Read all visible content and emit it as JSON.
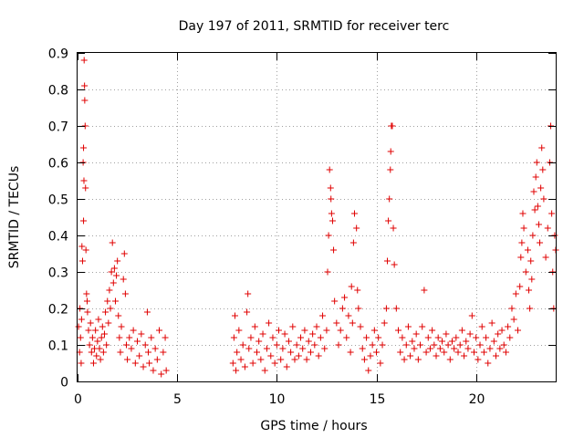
{
  "chart_data": {
    "type": "scatter",
    "title": "Day 197 of 2011, SRMTID for receiver terc",
    "xlabel": "GPS time / hours",
    "ylabel": "SRMTID / TECUs",
    "xlim": [
      0,
      24
    ],
    "ylim": [
      0,
      0.9
    ],
    "xticks": [
      0,
      5,
      10,
      15,
      20
    ],
    "xtick_labels": [
      "0",
      "5",
      "10",
      "15",
      "20"
    ],
    "yticks": [
      0,
      0.1,
      0.2,
      0.3,
      0.4,
      0.5,
      0.6,
      0.7,
      0.8,
      0.9
    ],
    "ytick_labels": [
      "0",
      "0.1",
      "0.2",
      "0.3",
      "0.4",
      "0.5",
      "0.6",
      "0.7",
      "0.8",
      "0.9"
    ],
    "grid": true,
    "marker": "+",
    "color": "#e00000",
    "series": [
      {
        "name": "SRMTID",
        "points": [
          [
            0.05,
            0.15
          ],
          [
            0.1,
            0.08
          ],
          [
            0.12,
            0.2
          ],
          [
            0.15,
            0.12
          ],
          [
            0.18,
            0.05
          ],
          [
            0.2,
            0.17
          ],
          [
            0.22,
            0.37
          ],
          [
            0.25,
            0.33
          ],
          [
            0.28,
            0.6
          ],
          [
            0.3,
            0.64
          ],
          [
            0.3,
            0.44
          ],
          [
            0.32,
            0.55
          ],
          [
            0.33,
            0.88
          ],
          [
            0.35,
            0.81
          ],
          [
            0.36,
            0.77
          ],
          [
            0.38,
            0.7
          ],
          [
            0.4,
            0.53
          ],
          [
            0.42,
            0.36
          ],
          [
            0.45,
            0.24
          ],
          [
            0.48,
            0.22
          ],
          [
            0.5,
            0.19
          ],
          [
            0.55,
            0.14
          ],
          [
            0.6,
            0.1
          ],
          [
            0.65,
            0.16
          ],
          [
            0.7,
            0.08
          ],
          [
            0.75,
            0.12
          ],
          [
            0.8,
            0.05
          ],
          [
            0.85,
            0.09
          ],
          [
            0.9,
            0.14
          ],
          [
            0.95,
            0.07
          ],
          [
            1.0,
            0.11
          ],
          [
            1.05,
            0.17
          ],
          [
            1.1,
            0.09
          ],
          [
            1.15,
            0.06
          ],
          [
            1.2,
            0.12
          ],
          [
            1.25,
            0.15
          ],
          [
            1.3,
            0.08
          ],
          [
            1.35,
            0.13
          ],
          [
            1.4,
            0.19
          ],
          [
            1.45,
            0.1
          ],
          [
            1.5,
            0.22
          ],
          [
            1.55,
            0.16
          ],
          [
            1.6,
            0.25
          ],
          [
            1.65,
            0.2
          ],
          [
            1.7,
            0.3
          ],
          [
            1.75,
            0.38
          ],
          [
            1.8,
            0.27
          ],
          [
            1.85,
            0.31
          ],
          [
            1.9,
            0.22
          ],
          [
            1.95,
            0.29
          ],
          [
            2.0,
            0.33
          ],
          [
            2.05,
            0.18
          ],
          [
            2.1,
            0.12
          ],
          [
            2.15,
            0.08
          ],
          [
            2.2,
            0.15
          ],
          [
            2.3,
            0.28
          ],
          [
            2.35,
            0.35
          ],
          [
            2.4,
            0.24
          ],
          [
            2.45,
            0.1
          ],
          [
            2.5,
            0.06
          ],
          [
            2.6,
            0.12
          ],
          [
            2.7,
            0.09
          ],
          [
            2.8,
            0.14
          ],
          [
            2.9,
            0.05
          ],
          [
            3.0,
            0.11
          ],
          [
            3.1,
            0.07
          ],
          [
            3.2,
            0.13
          ],
          [
            3.3,
            0.04
          ],
          [
            3.4,
            0.1
          ],
          [
            3.5,
            0.19
          ],
          [
            3.55,
            0.08
          ],
          [
            3.6,
            0.05
          ],
          [
            3.7,
            0.12
          ],
          [
            3.8,
            0.03
          ],
          [
            3.9,
            0.09
          ],
          [
            4.0,
            0.06
          ],
          [
            4.1,
            0.14
          ],
          [
            4.2,
            0.02
          ],
          [
            4.3,
            0.08
          ],
          [
            4.4,
            0.12
          ],
          [
            4.45,
            0.03
          ],
          [
            7.8,
            0.05
          ],
          [
            7.85,
            0.12
          ],
          [
            7.9,
            0.18
          ],
          [
            7.95,
            0.03
          ],
          [
            8.0,
            0.08
          ],
          [
            8.1,
            0.14
          ],
          [
            8.2,
            0.06
          ],
          [
            8.3,
            0.1
          ],
          [
            8.4,
            0.04
          ],
          [
            8.5,
            0.19
          ],
          [
            8.55,
            0.24
          ],
          [
            8.6,
            0.09
          ],
          [
            8.7,
            0.12
          ],
          [
            8.8,
            0.05
          ],
          [
            8.9,
            0.15
          ],
          [
            9.0,
            0.08
          ],
          [
            9.1,
            0.11
          ],
          [
            9.2,
            0.06
          ],
          [
            9.3,
            0.13
          ],
          [
            9.4,
            0.03
          ],
          [
            9.5,
            0.09
          ],
          [
            9.6,
            0.16
          ],
          [
            9.7,
            0.07
          ],
          [
            9.8,
            0.12
          ],
          [
            9.9,
            0.05
          ],
          [
            10.0,
            0.1
          ],
          [
            10.1,
            0.14
          ],
          [
            10.2,
            0.06
          ],
          [
            10.3,
            0.09
          ],
          [
            10.4,
            0.13
          ],
          [
            10.5,
            0.04
          ],
          [
            10.6,
            0.11
          ],
          [
            10.7,
            0.08
          ],
          [
            10.8,
            0.15
          ],
          [
            10.9,
            0.06
          ],
          [
            11.0,
            0.1
          ],
          [
            11.1,
            0.07
          ],
          [
            11.2,
            0.12
          ],
          [
            11.3,
            0.09
          ],
          [
            11.4,
            0.14
          ],
          [
            11.5,
            0.06
          ],
          [
            11.6,
            0.11
          ],
          [
            11.7,
            0.08
          ],
          [
            11.8,
            0.13
          ],
          [
            11.9,
            0.1
          ],
          [
            12.0,
            0.15
          ],
          [
            12.1,
            0.07
          ],
          [
            12.2,
            0.12
          ],
          [
            12.3,
            0.18
          ],
          [
            12.4,
            0.09
          ],
          [
            12.5,
            0.14
          ],
          [
            12.55,
            0.3
          ],
          [
            12.6,
            0.4
          ],
          [
            12.65,
            0.58
          ],
          [
            12.7,
            0.53
          ],
          [
            12.72,
            0.5
          ],
          [
            12.75,
            0.46
          ],
          [
            12.8,
            0.44
          ],
          [
            12.85,
            0.36
          ],
          [
            12.9,
            0.22
          ],
          [
            13.0,
            0.16
          ],
          [
            13.1,
            0.1
          ],
          [
            13.2,
            0.14
          ],
          [
            13.3,
            0.2
          ],
          [
            13.4,
            0.23
          ],
          [
            13.5,
            0.12
          ],
          [
            13.6,
            0.18
          ],
          [
            13.7,
            0.08
          ],
          [
            13.75,
            0.26
          ],
          [
            13.8,
            0.16
          ],
          [
            13.85,
            0.38
          ],
          [
            13.9,
            0.46
          ],
          [
            14.0,
            0.42
          ],
          [
            14.05,
            0.25
          ],
          [
            14.1,
            0.2
          ],
          [
            14.2,
            0.15
          ],
          [
            14.3,
            0.09
          ],
          [
            14.4,
            0.06
          ],
          [
            14.5,
            0.12
          ],
          [
            14.6,
            0.03
          ],
          [
            14.7,
            0.07
          ],
          [
            14.8,
            0.1
          ],
          [
            14.9,
            0.14
          ],
          [
            15.0,
            0.08
          ],
          [
            15.1,
            0.12
          ],
          [
            15.2,
            0.05
          ],
          [
            15.3,
            0.1
          ],
          [
            15.4,
            0.16
          ],
          [
            15.5,
            0.2
          ],
          [
            15.55,
            0.33
          ],
          [
            15.6,
            0.44
          ],
          [
            15.65,
            0.5
          ],
          [
            15.7,
            0.58
          ],
          [
            15.72,
            0.63
          ],
          [
            15.75,
            0.7
          ],
          [
            15.8,
            0.7
          ],
          [
            15.85,
            0.42
          ],
          [
            15.9,
            0.32
          ],
          [
            16.0,
            0.2
          ],
          [
            16.1,
            0.14
          ],
          [
            16.2,
            0.08
          ],
          [
            16.3,
            0.12
          ],
          [
            16.4,
            0.06
          ],
          [
            16.5,
            0.1
          ],
          [
            16.6,
            0.15
          ],
          [
            16.7,
            0.07
          ],
          [
            16.8,
            0.11
          ],
          [
            16.9,
            0.09
          ],
          [
            17.0,
            0.13
          ],
          [
            17.1,
            0.06
          ],
          [
            17.2,
            0.1
          ],
          [
            17.3,
            0.15
          ],
          [
            17.4,
            0.25
          ],
          [
            17.5,
            0.08
          ],
          [
            17.6,
            0.12
          ],
          [
            17.7,
            0.09
          ],
          [
            17.8,
            0.14
          ],
          [
            17.9,
            0.1
          ],
          [
            18.0,
            0.07
          ],
          [
            18.1,
            0.12
          ],
          [
            18.2,
            0.09
          ],
          [
            18.3,
            0.11
          ],
          [
            18.4,
            0.08
          ],
          [
            18.5,
            0.13
          ],
          [
            18.6,
            0.1
          ],
          [
            18.7,
            0.06
          ],
          [
            18.8,
            0.11
          ],
          [
            18.9,
            0.09
          ],
          [
            19.0,
            0.12
          ],
          [
            19.1,
            0.08
          ],
          [
            19.2,
            0.1
          ],
          [
            19.3,
            0.14
          ],
          [
            19.4,
            0.07
          ],
          [
            19.5,
            0.11
          ],
          [
            19.6,
            0.09
          ],
          [
            19.7,
            0.13
          ],
          [
            19.8,
            0.18
          ],
          [
            19.9,
            0.08
          ],
          [
            20.0,
            0.12
          ],
          [
            20.1,
            0.06
          ],
          [
            20.2,
            0.1
          ],
          [
            20.3,
            0.15
          ],
          [
            20.4,
            0.08
          ],
          [
            20.5,
            0.12
          ],
          [
            20.6,
            0.05
          ],
          [
            20.7,
            0.09
          ],
          [
            20.8,
            0.16
          ],
          [
            20.9,
            0.11
          ],
          [
            21.0,
            0.07
          ],
          [
            21.1,
            0.13
          ],
          [
            21.2,
            0.09
          ],
          [
            21.3,
            0.14
          ],
          [
            21.4,
            0.1
          ],
          [
            21.5,
            0.08
          ],
          [
            21.6,
            0.15
          ],
          [
            21.7,
            0.12
          ],
          [
            21.8,
            0.2
          ],
          [
            21.9,
            0.17
          ],
          [
            22.0,
            0.24
          ],
          [
            22.1,
            0.14
          ],
          [
            22.2,
            0.26
          ],
          [
            22.25,
            0.34
          ],
          [
            22.3,
            0.38
          ],
          [
            22.35,
            0.46
          ],
          [
            22.4,
            0.42
          ],
          [
            22.5,
            0.3
          ],
          [
            22.6,
            0.36
          ],
          [
            22.65,
            0.25
          ],
          [
            22.7,
            0.2
          ],
          [
            22.75,
            0.33
          ],
          [
            22.8,
            0.28
          ],
          [
            22.85,
            0.4
          ],
          [
            22.9,
            0.52
          ],
          [
            22.95,
            0.47
          ],
          [
            23.0,
            0.56
          ],
          [
            23.05,
            0.6
          ],
          [
            23.1,
            0.48
          ],
          [
            23.15,
            0.43
          ],
          [
            23.2,
            0.38
          ],
          [
            23.25,
            0.53
          ],
          [
            23.3,
            0.64
          ],
          [
            23.35,
            0.58
          ],
          [
            23.4,
            0.5
          ],
          [
            23.5,
            0.34
          ],
          [
            23.6,
            0.42
          ],
          [
            23.7,
            0.6
          ],
          [
            23.75,
            0.7
          ],
          [
            23.8,
            0.46
          ],
          [
            23.85,
            0.3
          ],
          [
            23.9,
            0.2
          ],
          [
            23.95,
            0.4
          ],
          [
            24.0,
            0.36
          ]
        ]
      }
    ]
  }
}
